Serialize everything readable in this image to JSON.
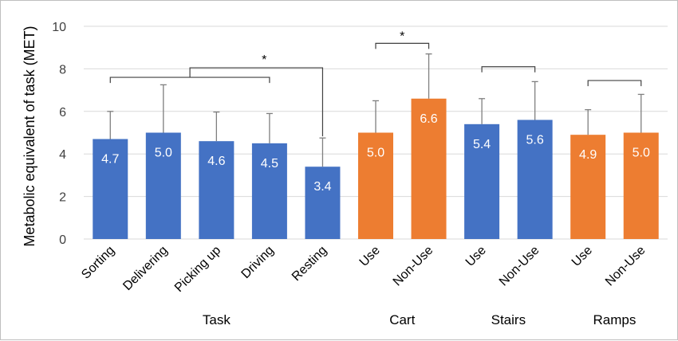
{
  "chart_data": {
    "type": "bar",
    "ylabel": "Metabolic equivalent of task (MET)",
    "ylim": [
      0,
      10
    ],
    "yticks": [
      0,
      2,
      4,
      6,
      8,
      10
    ],
    "grid": "horizontal",
    "colors": {
      "blue": "#4472c4",
      "orange": "#ed7d31",
      "grid": "#d9d9d9",
      "error": "#7f7f7f",
      "bracket": "#404040"
    },
    "bars": [
      {
        "label": "Sorting",
        "value": 4.7,
        "error_top": 6.0,
        "color": "#4472c4",
        "data_label": "4.7"
      },
      {
        "label": "Delivering",
        "value": 5.0,
        "error_top": 7.25,
        "color": "#4472c4",
        "data_label": "5.0"
      },
      {
        "label": "Picking up",
        "value": 4.6,
        "error_top": 5.97,
        "color": "#4472c4",
        "data_label": "4.6"
      },
      {
        "label": "Driving",
        "value": 4.5,
        "error_top": 5.9,
        "color": "#4472c4",
        "data_label": "4.5"
      },
      {
        "label": "Resting",
        "value": 3.4,
        "error_top": 4.75,
        "color": "#4472c4",
        "data_label": "3.4"
      },
      {
        "label": "Use",
        "value": 5.0,
        "error_top": 6.5,
        "color": "#ed7d31",
        "data_label": "5.0"
      },
      {
        "label": "Non-Use",
        "value": 6.6,
        "error_top": 8.7,
        "color": "#ed7d31",
        "data_label": "6.6"
      },
      {
        "label": "Use",
        "value": 5.4,
        "error_top": 6.6,
        "color": "#4472c4",
        "data_label": "5.4"
      },
      {
        "label": "Non-Use",
        "value": 5.6,
        "error_top": 7.4,
        "color": "#4472c4",
        "data_label": "5.6"
      },
      {
        "label": "Use",
        "value": 4.9,
        "error_top": 6.08,
        "color": "#ed7d31",
        "data_label": "4.9"
      },
      {
        "label": "Non-Use",
        "value": 5.0,
        "error_top": 6.8,
        "color": "#ed7d31",
        "data_label": "5.0"
      }
    ],
    "groups": [
      {
        "label": "Task",
        "from": 0,
        "to": 4
      },
      {
        "label": "Cart",
        "from": 5,
        "to": 6
      },
      {
        "label": "Stairs",
        "from": 7,
        "to": 8
      },
      {
        "label": "Ramps",
        "from": 9,
        "to": 10
      }
    ],
    "significance": [
      {
        "type": "group-vs-one",
        "from": 0,
        "to": 3,
        "target": 4,
        "y": 7.6,
        "top": 8.05,
        "label": "*"
      },
      {
        "type": "pair",
        "from": 5,
        "to": 6,
        "y": 9.2,
        "label": "*"
      },
      {
        "type": "pair",
        "from": 7,
        "to": 8,
        "y": 8.1,
        "label": ""
      },
      {
        "type": "pair",
        "from": 9,
        "to": 10,
        "y": 7.45,
        "label": ""
      }
    ]
  }
}
